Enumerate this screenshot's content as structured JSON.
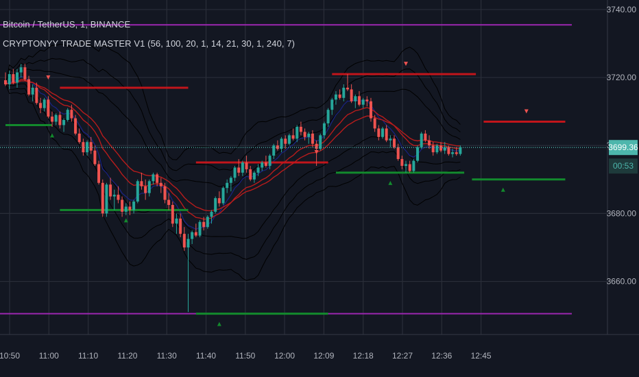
{
  "header": {
    "symbol_line": "Bitcoin / TetherUS, 1, BINANCE",
    "indicator_line": "CRYPTONYY TRADE MASTER V1 (56, 100, 20, 1, 14, 21, 30, 1, 240, 7)"
  },
  "price_axis": {
    "ticks": [
      "3740.00",
      "3720.00",
      "3700.00",
      "3680.00",
      "3660.00"
    ],
    "tick_values": [
      3740,
      3720,
      3700,
      3680,
      3660
    ],
    "last_price_label": "3699.36",
    "countdown_label": "00:53"
  },
  "time_axis": {
    "labels": [
      "10:50",
      "11:00",
      "11:10",
      "11:20",
      "11:30",
      "11:40",
      "11:50",
      "12:00",
      "12:09",
      "12:18",
      "12:27",
      "12:36",
      "12:45"
    ]
  },
  "colors": {
    "background": "#131722",
    "grid": "#2a2e39",
    "up_candle": "#26a69a",
    "down_candle": "#ef5350",
    "resistance": "#c2151b",
    "support": "#138a2d",
    "envelope": "#9c27b0",
    "last_price": "#4db6ac",
    "ema_red": "#b71c1c",
    "ema_blue": "#1a237e"
  },
  "chart_data": {
    "type": "candlestick",
    "ylim": [
      3647,
      3742
    ],
    "candles": [
      [
        3719.2,
        3721.5,
        3717.5,
        3718.0
      ],
      [
        3718.0,
        3722.0,
        3716.5,
        3721.0
      ],
      [
        3721.0,
        3722.5,
        3718.0,
        3718.5
      ],
      [
        3718.5,
        3722.5,
        3717.0,
        3721.5
      ],
      [
        3721.5,
        3724.0,
        3720.0,
        3723.0
      ],
      [
        3723.0,
        3724.0,
        3719.0,
        3719.5
      ],
      [
        3719.5,
        3720.5,
        3714.5,
        3715.0
      ],
      [
        3715.0,
        3718.0,
        3713.0,
        3717.0
      ],
      [
        3717.0,
        3718.5,
        3712.0,
        3712.5
      ],
      [
        3712.5,
        3714.0,
        3709.5,
        3711.0
      ],
      [
        3711.0,
        3714.0,
        3710.0,
        3713.5
      ],
      [
        3713.5,
        3714.5,
        3708.0,
        3708.5
      ],
      [
        3708.5,
        3710.0,
        3705.5,
        3707.0
      ],
      [
        3707.0,
        3709.5,
        3706.0,
        3709.0
      ],
      [
        3709.0,
        3710.0,
        3705.0,
        3706.0
      ],
      [
        3706.0,
        3708.0,
        3704.0,
        3707.5
      ],
      [
        3707.5,
        3711.0,
        3707.0,
        3710.5
      ],
      [
        3710.5,
        3712.0,
        3707.0,
        3708.0
      ],
      [
        3708.0,
        3709.0,
        3703.0,
        3703.5
      ],
      [
        3703.5,
        3705.0,
        3700.5,
        3701.0
      ],
      [
        3701.0,
        3702.0,
        3697.0,
        3698.0
      ],
      [
        3698.0,
        3701.5,
        3697.0,
        3701.0
      ],
      [
        3701.0,
        3702.5,
        3697.5,
        3698.5
      ],
      [
        3698.5,
        3700.0,
        3694.0,
        3694.5
      ],
      [
        3694.5,
        3695.5,
        3688.5,
        3689.0
      ],
      [
        3689.0,
        3690.0,
        3679.0,
        3680.0
      ],
      [
        3680.0,
        3689.0,
        3679.0,
        3688.5
      ],
      [
        3688.5,
        3690.5,
        3684.0,
        3685.0
      ],
      [
        3685.0,
        3687.0,
        3681.0,
        3685.5
      ],
      [
        3685.5,
        3688.0,
        3683.0,
        3684.0
      ],
      [
        3684.0,
        3685.0,
        3679.0,
        3680.5
      ],
      [
        3680.5,
        3683.0,
        3679.5,
        3682.0
      ],
      [
        3682.0,
        3683.5,
        3679.5,
        3681.0
      ],
      [
        3681.0,
        3684.0,
        3680.0,
        3683.5
      ],
      [
        3683.5,
        3690.0,
        3683.0,
        3689.5
      ],
      [
        3689.5,
        3692.0,
        3687.0,
        3688.0
      ],
      [
        3688.0,
        3690.0,
        3684.0,
        3686.0
      ],
      [
        3686.0,
        3690.0,
        3685.0,
        3689.5
      ],
      [
        3689.5,
        3692.0,
        3688.5,
        3691.5
      ],
      [
        3691.5,
        3692.0,
        3688.0,
        3689.0
      ],
      [
        3689.0,
        3690.5,
        3686.0,
        3688.0
      ],
      [
        3688.0,
        3689.0,
        3683.0,
        3684.0
      ],
      [
        3684.0,
        3686.0,
        3681.0,
        3682.5
      ],
      [
        3682.5,
        3683.5,
        3676.0,
        3677.0
      ],
      [
        3677.0,
        3680.0,
        3674.0,
        3678.5
      ],
      [
        3678.5,
        3680.0,
        3673.0,
        3674.0
      ],
      [
        3674.0,
        3676.0,
        3669.0,
        3670.0
      ],
      [
        3670.0,
        3674.0,
        3651.0,
        3672.5
      ],
      [
        3672.5,
        3675.0,
        3671.0,
        3674.5
      ],
      [
        3674.5,
        3677.0,
        3673.0,
        3673.5
      ],
      [
        3673.5,
        3678.0,
        3673.0,
        3677.5
      ],
      [
        3677.5,
        3679.0,
        3675.0,
        3676.0
      ],
      [
        3676.0,
        3679.5,
        3675.5,
        3679.0
      ],
      [
        3679.0,
        3681.0,
        3677.0,
        3680.5
      ],
      [
        3680.5,
        3685.0,
        3680.0,
        3684.5
      ],
      [
        3684.5,
        3686.5,
        3682.0,
        3683.0
      ],
      [
        3683.0,
        3688.0,
        3682.5,
        3687.5
      ],
      [
        3687.5,
        3690.0,
        3686.0,
        3689.0
      ],
      [
        3689.0,
        3691.0,
        3686.5,
        3690.5
      ],
      [
        3690.5,
        3694.0,
        3689.5,
        3693.5
      ],
      [
        3693.5,
        3696.0,
        3691.0,
        3692.0
      ],
      [
        3692.0,
        3695.5,
        3691.0,
        3695.0
      ],
      [
        3695.0,
        3697.0,
        3692.0,
        3693.0
      ],
      [
        3693.0,
        3694.0,
        3689.5,
        3690.0
      ],
      [
        3690.0,
        3692.5,
        3689.0,
        3692.0
      ],
      [
        3692.0,
        3694.5,
        3691.0,
        3693.5
      ],
      [
        3693.5,
        3695.5,
        3692.5,
        3695.0
      ],
      [
        3695.0,
        3697.0,
        3693.5,
        3694.0
      ],
      [
        3694.0,
        3697.5,
        3693.0,
        3697.0
      ],
      [
        3697.0,
        3700.5,
        3696.0,
        3700.0
      ],
      [
        3700.0,
        3701.5,
        3698.5,
        3699.0
      ],
      [
        3699.0,
        3702.5,
        3698.0,
        3702.0
      ],
      [
        3702.0,
        3703.0,
        3699.0,
        3700.5
      ],
      [
        3700.5,
        3703.5,
        3700.0,
        3703.0
      ],
      [
        3703.0,
        3705.0,
        3701.5,
        3702.0
      ],
      [
        3702.0,
        3706.0,
        3701.0,
        3705.5
      ],
      [
        3705.5,
        3707.0,
        3703.0,
        3704.0
      ],
      [
        3704.0,
        3705.0,
        3701.5,
        3702.5
      ],
      [
        3702.5,
        3704.0,
        3700.5,
        3703.5
      ],
      [
        3703.5,
        3704.5,
        3699.5,
        3700.5
      ],
      [
        3700.5,
        3701.5,
        3694.0,
        3699.0
      ],
      [
        3699.0,
        3703.5,
        3698.5,
        3703.0
      ],
      [
        3703.0,
        3707.0,
        3702.0,
        3706.5
      ],
      [
        3706.5,
        3711.0,
        3705.5,
        3710.5
      ],
      [
        3710.5,
        3714.0,
        3709.0,
        3713.5
      ],
      [
        3713.5,
        3716.0,
        3712.0,
        3715.0
      ],
      [
        3715.0,
        3716.5,
        3713.5,
        3714.0
      ],
      [
        3714.0,
        3718.0,
        3713.0,
        3717.0
      ],
      [
        3717.0,
        3721.0,
        3716.0,
        3716.5
      ],
      [
        3716.5,
        3718.0,
        3712.5,
        3713.0
      ],
      [
        3713.0,
        3715.0,
        3711.0,
        3714.5
      ],
      [
        3714.5,
        3716.0,
        3711.5,
        3712.0
      ],
      [
        3712.0,
        3714.0,
        3711.0,
        3713.5
      ],
      [
        3713.5,
        3714.5,
        3711.5,
        3713.0
      ],
      [
        3713.0,
        3714.0,
        3707.0,
        3708.0
      ],
      [
        3708.0,
        3709.0,
        3704.0,
        3705.0
      ],
      [
        3705.0,
        3706.0,
        3701.5,
        3702.5
      ],
      [
        3702.5,
        3705.5,
        3702.0,
        3705.0
      ],
      [
        3705.0,
        3706.0,
        3701.0,
        3701.5
      ],
      [
        3701.5,
        3703.0,
        3699.5,
        3702.0
      ],
      [
        3702.0,
        3703.0,
        3699.0,
        3699.5
      ],
      [
        3699.5,
        3700.5,
        3695.5,
        3696.0
      ],
      [
        3696.0,
        3697.0,
        3693.0,
        3694.0
      ],
      [
        3694.0,
        3695.5,
        3692.0,
        3694.5
      ],
      [
        3694.5,
        3695.5,
        3692.0,
        3692.5
      ],
      [
        3692.5,
        3696.0,
        3692.0,
        3695.5
      ],
      [
        3695.5,
        3700.0,
        3695.0,
        3699.5
      ],
      [
        3699.5,
        3704.0,
        3699.0,
        3703.5
      ],
      [
        3703.5,
        3704.5,
        3701.0,
        3701.5
      ],
      [
        3701.5,
        3703.0,
        3699.0,
        3700.0
      ],
      [
        3700.0,
        3701.0,
        3697.0,
        3698.0
      ],
      [
        3698.0,
        3700.5,
        3697.5,
        3700.0
      ],
      [
        3700.0,
        3701.0,
        3698.0,
        3698.5
      ],
      [
        3698.5,
        3701.0,
        3697.5,
        3699.5
      ],
      [
        3699.5,
        3700.0,
        3697.0,
        3697.5
      ],
      [
        3697.5,
        3699.0,
        3696.5,
        3698.0
      ],
      [
        3698.0,
        3699.5,
        3697.0,
        3697.5
      ],
      [
        3697.5,
        3700.0,
        3697.0,
        3699.4
      ]
    ],
    "envelope_levels": [
      3735.5,
      3650.5
    ],
    "resistance_levels": [
      {
        "price": 3717,
        "from": 14,
        "to": 47,
        "signal_at": 11
      },
      {
        "price": 3695,
        "from": 49,
        "to": 83,
        "signal_at": 80
      },
      {
        "price": 3721,
        "from": 84,
        "to": 121,
        "signal_at": 103
      },
      {
        "price": 3707,
        "from": 123,
        "to": 144,
        "signal_at": 134
      }
    ],
    "support_levels": [
      {
        "price": 3706,
        "from": 0,
        "to": 12,
        "signal_at": 12
      },
      {
        "price": 3681,
        "from": 14,
        "to": 47,
        "signal_at": 31
      },
      {
        "price": 3650.5,
        "from": 49,
        "to": 83,
        "signal_at": 55
      },
      {
        "price": 3692,
        "from": 85,
        "to": 118,
        "signal_at": 99
      },
      {
        "price": 3690,
        "from": 120,
        "to": 144,
        "signal_at": 128
      }
    ]
  }
}
